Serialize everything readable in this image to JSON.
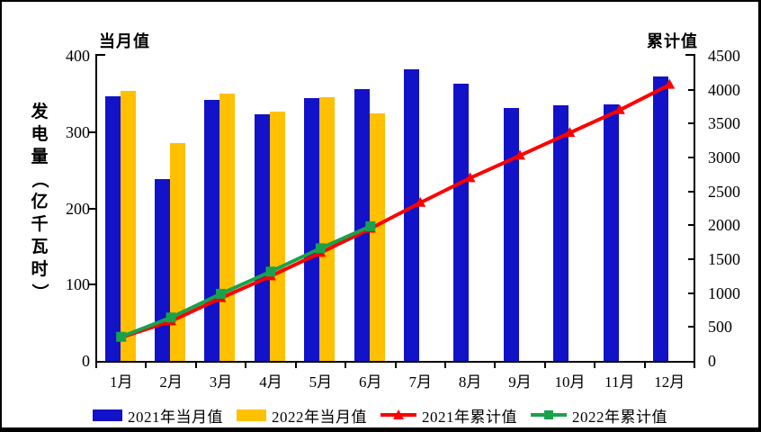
{
  "chart_data": {
    "type": "combo-bar-line",
    "title": "",
    "categories": [
      "1月",
      "2月",
      "3月",
      "4月",
      "5月",
      "6月",
      "7月",
      "8月",
      "9月",
      "10月",
      "11月",
      "12月"
    ],
    "y_axis_title": "发电量（亿千瓦时）",
    "left_axis": {
      "label": "当月值",
      "min": 0,
      "max": 400,
      "ticks": [
        0,
        100,
        200,
        300,
        400
      ]
    },
    "right_axis": {
      "label": "累计值",
      "min": 0,
      "max": 4500,
      "ticks": [
        0,
        500,
        1000,
        1500,
        2000,
        2500,
        3000,
        3500,
        4000,
        4500
      ]
    },
    "legend_position": "bottom",
    "gridlines": false,
    "series": [
      {
        "name": "2021年当月值",
        "type": "bar",
        "axis": "left",
        "color": "#1212C8",
        "values": [
          347,
          238,
          342,
          323,
          345,
          356,
          382,
          364,
          332,
          335,
          336,
          373
        ]
      },
      {
        "name": "2022年当月值",
        "type": "bar",
        "axis": "left",
        "color": "#FFC000",
        "values": [
          354,
          285,
          350,
          327,
          346,
          324
        ]
      },
      {
        "name": "2021年累计值",
        "type": "line",
        "marker": "triangle",
        "axis": "right",
        "color": "#FF0000",
        "values": [
          347,
          585,
          927,
          1250,
          1595,
          1951,
          2333,
          2697,
          3029,
          3364,
          3700,
          4073
        ]
      },
      {
        "name": "2022年累计值",
        "type": "line",
        "marker": "square",
        "axis": "right",
        "color": "#18A24C",
        "values": [
          355,
          640,
          990,
          1317,
          1662,
          1986
        ]
      }
    ]
  }
}
